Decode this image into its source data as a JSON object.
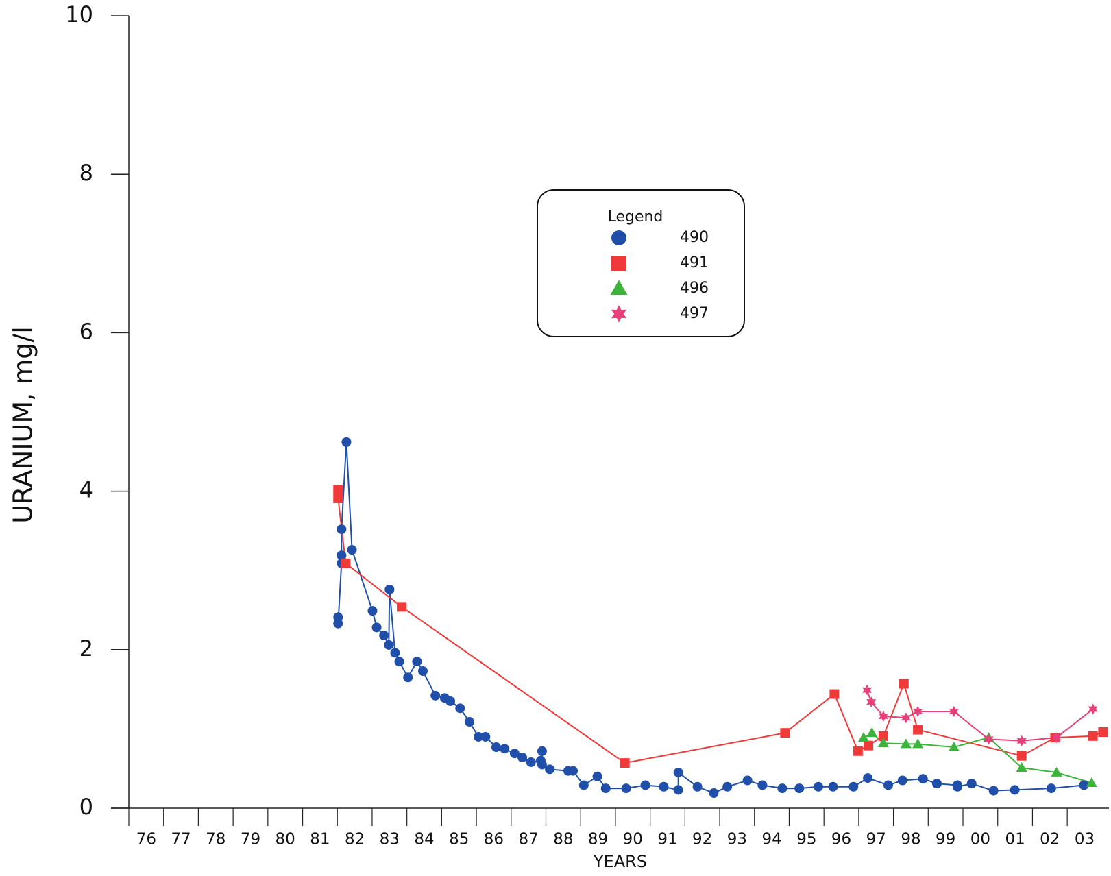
{
  "chart_data": {
    "type": "line",
    "y_label": "URANIUM, mg/l",
    "x_label": "YEARS",
    "legend_title": "Legend",
    "ylim": [
      0,
      10
    ],
    "yticks": [
      0,
      2,
      4,
      6,
      8,
      10
    ],
    "xlim": [
      1976,
      2004.2
    ],
    "xticks": [
      {
        "value": 1976,
        "label": "76"
      },
      {
        "value": 1977,
        "label": "77"
      },
      {
        "value": 1978,
        "label": "78"
      },
      {
        "value": 1979,
        "label": "79"
      },
      {
        "value": 1980,
        "label": "80"
      },
      {
        "value": 1981,
        "label": "81"
      },
      {
        "value": 1982,
        "label": "82"
      },
      {
        "value": 1983,
        "label": "83"
      },
      {
        "value": 1984,
        "label": "84"
      },
      {
        "value": 1985,
        "label": "85"
      },
      {
        "value": 1986,
        "label": "86"
      },
      {
        "value": 1987,
        "label": "87"
      },
      {
        "value": 1988,
        "label": "88"
      },
      {
        "value": 1989,
        "label": "89"
      },
      {
        "value": 1990,
        "label": "90"
      },
      {
        "value": 1991,
        "label": "91"
      },
      {
        "value": 1992,
        "label": "92"
      },
      {
        "value": 1993,
        "label": "93"
      },
      {
        "value": 1994,
        "label": "94"
      },
      {
        "value": 1995,
        "label": "95"
      },
      {
        "value": 1996,
        "label": "96"
      },
      {
        "value": 1997,
        "label": "97"
      },
      {
        "value": 1998,
        "label": "98"
      },
      {
        "value": 1999,
        "label": "99"
      },
      {
        "value": 2000,
        "label": "00"
      },
      {
        "value": 2001,
        "label": "01"
      },
      {
        "value": 2002,
        "label": "02"
      },
      {
        "value": 2003,
        "label": "03"
      }
    ],
    "series": [
      {
        "name": "490",
        "color": "#1f4fa8",
        "marker": "circle",
        "x": [
          1982.02,
          1982.02,
          1982.12,
          1982.12,
          1982.12,
          1982.26,
          1982.42,
          1983.01,
          1983.13,
          1983.34,
          1983.48,
          1983.5,
          1983.66,
          1983.78,
          1984.03,
          1984.29,
          1984.46,
          1984.82,
          1985.09,
          1985.25,
          1985.53,
          1985.8,
          1986.06,
          1986.26,
          1986.57,
          1986.81,
          1987.1,
          1987.32,
          1987.57,
          1987.85,
          1987.89,
          1987.89,
          1988.11,
          1988.64,
          1988.78,
          1989.09,
          1989.48,
          1989.72,
          1990.31,
          1990.86,
          1991.39,
          1991.81,
          1991.81,
          1992.36,
          1992.83,
          1993.22,
          1993.8,
          1994.23,
          1994.8,
          1995.29,
          1995.84,
          1996.26,
          1996.85,
          1997.26,
          1997.85,
          1998.26,
          1998.85,
          1999.25,
          1999.84,
          1999.84,
          2000.25,
          2000.88,
          2001.49,
          2002.54,
          2003.48
        ],
        "values": [
          2.41,
          2.33,
          3.09,
          3.19,
          3.52,
          4.62,
          3.26,
          2.49,
          2.28,
          2.18,
          2.06,
          2.76,
          1.96,
          1.85,
          1.65,
          1.85,
          1.73,
          1.42,
          1.39,
          1.35,
          1.26,
          1.09,
          0.9,
          0.9,
          0.77,
          0.75,
          0.69,
          0.64,
          0.58,
          0.6,
          0.72,
          0.55,
          0.49,
          0.47,
          0.47,
          0.29,
          0.4,
          0.25,
          0.25,
          0.29,
          0.27,
          0.23,
          0.45,
          0.27,
          0.19,
          0.27,
          0.35,
          0.29,
          0.25,
          0.25,
          0.27,
          0.27,
          0.27,
          0.38,
          0.29,
          0.35,
          0.37,
          0.31,
          0.29,
          0.27,
          0.31,
          0.22,
          0.23,
          0.25,
          0.29
        ]
      },
      {
        "name": "491",
        "color": "#f03a3a",
        "marker": "square",
        "x": [
          1982.02,
          1982.02,
          1982.24,
          1983.85,
          1990.27,
          1994.88,
          1996.3,
          1996.98,
          1997.28,
          1997.71,
          1998.3,
          1998.7,
          2001.69,
          2002.65,
          2003.74,
          2004.03
        ],
        "values": [
          4.02,
          3.91,
          3.09,
          2.54,
          0.57,
          0.95,
          1.44,
          0.72,
          0.79,
          0.91,
          1.57,
          0.99,
          0.66,
          0.89,
          0.91,
          0.96
        ]
      },
      {
        "name": "496",
        "color": "#3cb43c",
        "marker": "triangle",
        "x": [
          1997.14,
          1997.38,
          1997.71,
          1998.36,
          1998.7,
          1999.74,
          2000.74,
          2001.69,
          2002.69,
          2003.7
        ],
        "values": [
          0.89,
          0.95,
          0.82,
          0.81,
          0.81,
          0.77,
          0.89,
          0.51,
          0.45,
          0.32
        ]
      },
      {
        "name": "497",
        "color": "#e8407a",
        "marker": "star",
        "x": [
          1997.24,
          1997.36,
          1997.71,
          1998.36,
          1998.7,
          1999.74,
          2000.74,
          2001.69,
          2002.69,
          2003.74
        ],
        "values": [
          1.49,
          1.34,
          1.16,
          1.14,
          1.22,
          1.22,
          0.87,
          0.85,
          0.89,
          1.25
        ]
      }
    ]
  }
}
